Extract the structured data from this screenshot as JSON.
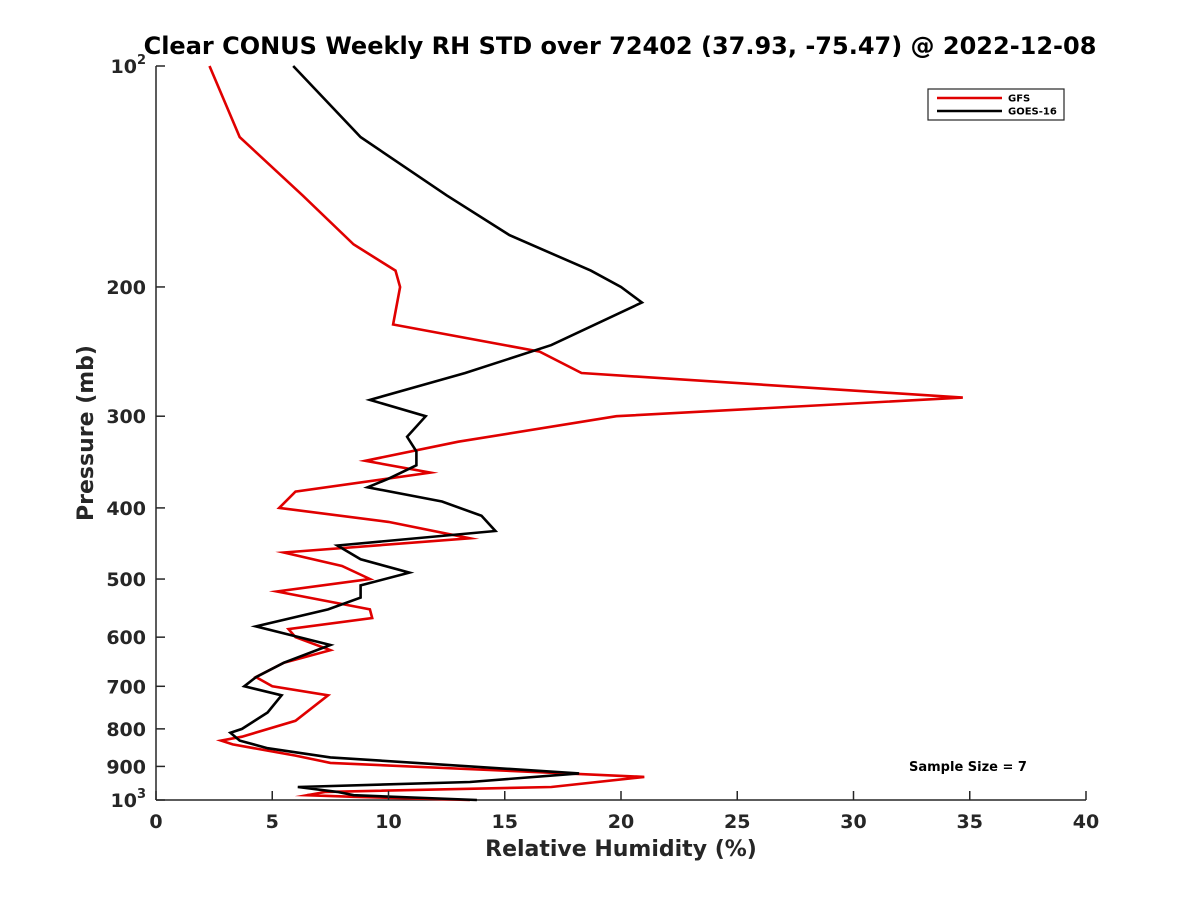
{
  "chart_data": {
    "type": "line",
    "title": "Clear CONUS Weekly RH STD over 72402 (37.93, -75.47) @ 2022-12-08",
    "xlabel": "Relative Humidity (%)",
    "ylabel": "Pressure (mb)",
    "xlim": [
      0,
      40
    ],
    "ylim": [
      100,
      1000
    ],
    "y_scale": "log",
    "y_reversed": true,
    "grid": false,
    "x_ticks": [
      0,
      5,
      10,
      15,
      20,
      25,
      30,
      35,
      40
    ],
    "y_ticks": [
      {
        "value": 100,
        "base": "10",
        "exp": "2"
      },
      {
        "value": 200,
        "label": "200"
      },
      {
        "value": 300,
        "label": "300"
      },
      {
        "value": 400,
        "label": "400"
      },
      {
        "value": 500,
        "label": "500"
      },
      {
        "value": 600,
        "label": "600"
      },
      {
        "value": 700,
        "label": "700"
      },
      {
        "value": 800,
        "label": "800"
      },
      {
        "value": 900,
        "label": "900"
      },
      {
        "value": 1000,
        "base": "10",
        "exp": "3"
      }
    ],
    "legend_position": "top-right",
    "annotation": "Sample Size = 7",
    "series": [
      {
        "name": "GFS",
        "color": "#e00000",
        "points": [
          [
            2.3,
            100
          ],
          [
            3.6,
            125
          ],
          [
            6.3,
            150
          ],
          [
            8.5,
            175
          ],
          [
            10.3,
            190
          ],
          [
            10.5,
            200
          ],
          [
            10.2,
            225
          ],
          [
            16.5,
            245
          ],
          [
            18.3,
            262
          ],
          [
            34.7,
            283
          ],
          [
            19.8,
            300
          ],
          [
            13.0,
            325
          ],
          [
            9.0,
            345
          ],
          [
            11.8,
            358
          ],
          [
            6.0,
            380
          ],
          [
            5.3,
            400
          ],
          [
            10.0,
            418
          ],
          [
            13.5,
            440
          ],
          [
            5.5,
            460
          ],
          [
            8.0,
            480
          ],
          [
            9.2,
            500
          ],
          [
            5.2,
            520
          ],
          [
            9.2,
            550
          ],
          [
            9.3,
            565
          ],
          [
            5.7,
            585
          ],
          [
            6.0,
            600
          ],
          [
            7.5,
            625
          ],
          [
            5.5,
            650
          ],
          [
            4.3,
            680
          ],
          [
            5.0,
            700
          ],
          [
            7.4,
            720
          ],
          [
            6.0,
            780
          ],
          [
            3.7,
            820
          ],
          [
            2.8,
            830
          ],
          [
            3.3,
            840
          ],
          [
            6.0,
            870
          ],
          [
            7.5,
            890
          ],
          [
            21.0,
            930
          ],
          [
            17.0,
            960
          ],
          [
            7.3,
            975
          ],
          [
            6.5,
            985
          ],
          [
            8.5,
            990
          ],
          [
            13.5,
            1000
          ]
        ]
      },
      {
        "name": "GOES-16",
        "color": "#000000",
        "points": [
          [
            5.9,
            100
          ],
          [
            8.8,
            125
          ],
          [
            12.5,
            150
          ],
          [
            15.2,
            170
          ],
          [
            18.7,
            190
          ],
          [
            20.0,
            200
          ],
          [
            20.9,
            210
          ],
          [
            17.0,
            240
          ],
          [
            13.3,
            262
          ],
          [
            9.2,
            285
          ],
          [
            11.6,
            300
          ],
          [
            10.8,
            320
          ],
          [
            11.2,
            335
          ],
          [
            11.2,
            350
          ],
          [
            10.0,
            365
          ],
          [
            9.1,
            375
          ],
          [
            12.3,
            392
          ],
          [
            14.0,
            410
          ],
          [
            14.6,
            430
          ],
          [
            7.8,
            450
          ],
          [
            8.8,
            470
          ],
          [
            10.9,
            490
          ],
          [
            8.8,
            510
          ],
          [
            8.8,
            530
          ],
          [
            7.4,
            550
          ],
          [
            4.3,
            580
          ],
          [
            7.5,
            615
          ],
          [
            5.5,
            650
          ],
          [
            4.3,
            680
          ],
          [
            3.8,
            700
          ],
          [
            5.4,
            720
          ],
          [
            4.8,
            760
          ],
          [
            3.7,
            800
          ],
          [
            3.2,
            810
          ],
          [
            3.6,
            830
          ],
          [
            4.8,
            850
          ],
          [
            7.5,
            875
          ],
          [
            18.2,
            920
          ],
          [
            13.5,
            945
          ],
          [
            6.1,
            960
          ],
          [
            7.8,
            975
          ],
          [
            8.5,
            985
          ],
          [
            13.8,
            1000
          ]
        ]
      }
    ]
  }
}
